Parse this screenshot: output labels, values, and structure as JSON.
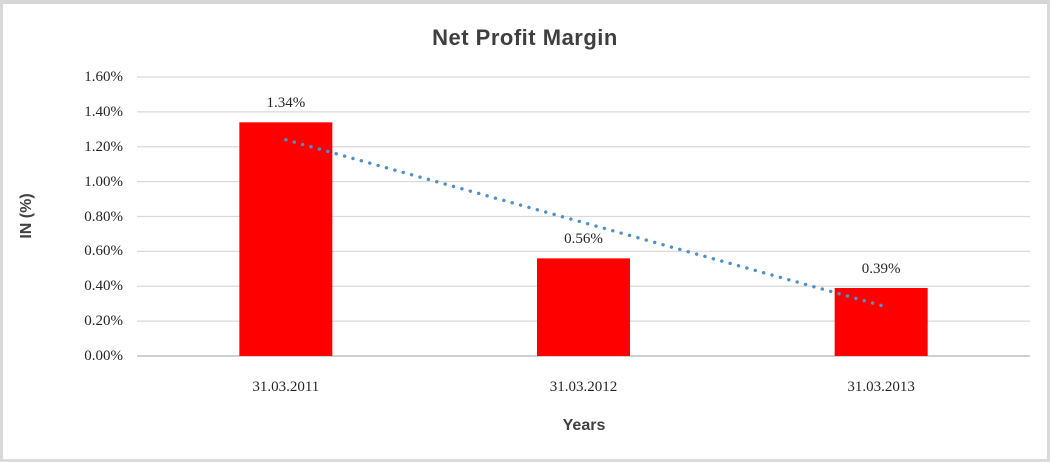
{
  "chart_data": {
    "type": "bar",
    "title": "Net Profit Margin",
    "xlabel": "Years",
    "ylabel": "IN (%)",
    "categories": [
      "31.03.2011",
      "31.03.2012",
      "31.03.2013"
    ],
    "values": [
      1.34,
      0.56,
      0.39
    ],
    "data_labels": [
      "1.34%",
      "0.56%",
      "0.39%"
    ],
    "ylim": [
      0,
      1.6
    ],
    "ytick_step": 0.2,
    "ytick_labels": [
      "0.00%",
      "0.20%",
      "0.40%",
      "0.60%",
      "0.80%",
      "1.00%",
      "1.20%",
      "1.40%",
      "1.60%"
    ],
    "grid": true,
    "legend": "none",
    "bar_color": "#ff0000",
    "gridline_color": "#d9d9d9",
    "axis_line_color": "#bfbfbf",
    "trendline": {
      "type": "linear",
      "style": "dotted",
      "color": "#4e8fce",
      "start_value": 1.24,
      "end_value": 0.29
    }
  }
}
